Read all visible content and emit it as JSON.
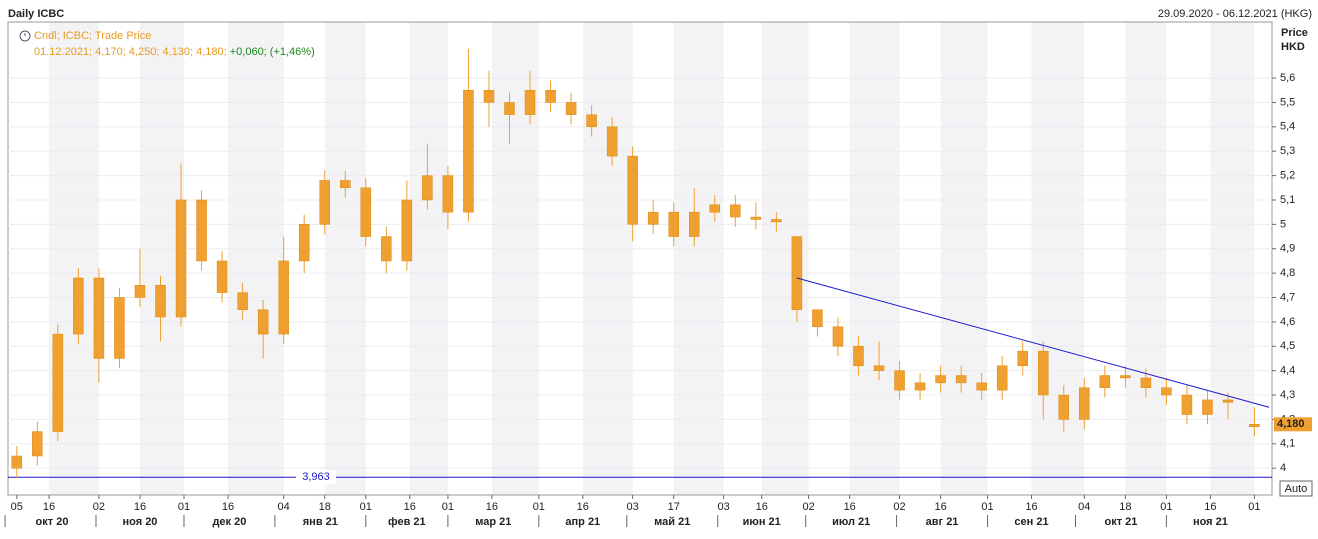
{
  "chart_data": {
    "type": "candlestick",
    "title": "Daily ICBC",
    "date_range": "29.09.2020 - 06.12.2021 (HKG)",
    "legend_lines": [
      "Cndl; ICBC; Trade Price",
      "01.12.2021; 4,170; 4,250; 4,130; 4,180;",
      "+0,060; (+1,46%)"
    ],
    "y_axis_label": [
      "Price",
      "HKD"
    ],
    "color": "#f0a030",
    "x": [
      "2020-10-05",
      "2020-10-12",
      "2020-10-19",
      "2020-10-26",
      "2020-11-02",
      "2020-11-09",
      "2020-11-16",
      "2020-11-23",
      "2020-11-30",
      "2020-12-07",
      "2020-12-14",
      "2020-12-21",
      "2020-12-28",
      "2021-01-04",
      "2021-01-11",
      "2021-01-18",
      "2021-01-25",
      "2021-02-01",
      "2021-02-08",
      "2021-02-15",
      "2021-02-22",
      "2021-03-01",
      "2021-03-08",
      "2021-03-15",
      "2021-03-22",
      "2021-03-29",
      "2021-04-05",
      "2021-04-12",
      "2021-04-19",
      "2021-04-26",
      "2021-05-03",
      "2021-05-10",
      "2021-05-17",
      "2021-05-24",
      "2021-05-31",
      "2021-06-07",
      "2021-06-14",
      "2021-06-21",
      "2021-06-28",
      "2021-07-05",
      "2021-07-12",
      "2021-07-19",
      "2021-07-26",
      "2021-08-02",
      "2021-08-09",
      "2021-08-16",
      "2021-08-23",
      "2021-08-30",
      "2021-09-06",
      "2021-09-13",
      "2021-09-20",
      "2021-09-27",
      "2021-10-04",
      "2021-10-11",
      "2021-10-18",
      "2021-10-25",
      "2021-11-01",
      "2021-11-08",
      "2021-11-15",
      "2021-11-22",
      "2021-12-01"
    ],
    "open": [
      4.0,
      4.05,
      4.15,
      4.55,
      4.78,
      4.45,
      4.7,
      4.75,
      4.62,
      5.1,
      4.85,
      4.72,
      4.65,
      4.55,
      4.85,
      5.0,
      5.18,
      5.15,
      4.95,
      4.85,
      5.1,
      5.2,
      5.05,
      5.55,
      5.5,
      5.45,
      5.55,
      5.5,
      5.45,
      5.4,
      5.28,
      5.0,
      5.05,
      4.95,
      5.05,
      5.08,
      5.03,
      5.02,
      4.95,
      4.65,
      4.58,
      4.5,
      4.42,
      4.4,
      4.32,
      4.35,
      4.38,
      4.35,
      4.32,
      4.42,
      4.48,
      4.3,
      4.2,
      4.33,
      4.38,
      4.37,
      4.33,
      4.3,
      4.22,
      4.28,
      4.17
    ],
    "high": [
      4.09,
      4.19,
      4.59,
      4.82,
      4.82,
      4.74,
      4.9,
      4.79,
      5.25,
      5.14,
      4.89,
      4.76,
      4.69,
      4.95,
      5.04,
      5.22,
      5.22,
      5.19,
      4.99,
      5.18,
      5.33,
      5.24,
      5.72,
      5.63,
      5.54,
      5.63,
      5.59,
      5.54,
      5.49,
      5.44,
      5.32,
      5.1,
      5.09,
      5.15,
      5.12,
      5.12,
      5.09,
      5.05,
      4.95,
      4.65,
      4.62,
      4.54,
      4.52,
      4.44,
      4.39,
      4.42,
      4.42,
      4.39,
      4.46,
      4.52,
      4.52,
      4.34,
      4.37,
      4.42,
      4.42,
      4.41,
      4.37,
      4.34,
      4.32,
      4.31,
      4.25
    ],
    "low": [
      3.96,
      4.01,
      4.11,
      4.51,
      4.35,
      4.41,
      4.66,
      4.52,
      4.58,
      4.81,
      4.68,
      4.61,
      4.45,
      4.51,
      4.8,
      4.96,
      5.11,
      4.91,
      4.8,
      4.81,
      5.06,
      4.98,
      5.01,
      5.4,
      5.33,
      5.41,
      5.46,
      5.41,
      5.36,
      5.24,
      4.93,
      4.96,
      4.91,
      4.91,
      5.01,
      4.99,
      4.98,
      4.97,
      4.6,
      4.54,
      4.46,
      4.38,
      4.36,
      4.28,
      4.28,
      4.31,
      4.31,
      4.28,
      4.28,
      4.38,
      4.2,
      4.15,
      4.16,
      4.29,
      4.33,
      4.29,
      4.26,
      4.18,
      4.18,
      4.2,
      4.13
    ],
    "close": [
      4.05,
      4.15,
      4.55,
      4.78,
      4.45,
      4.7,
      4.75,
      4.62,
      5.1,
      4.85,
      4.72,
      4.65,
      4.55,
      4.85,
      5.0,
      5.18,
      5.15,
      4.95,
      4.85,
      5.1,
      5.2,
      5.05,
      5.55,
      5.5,
      5.45,
      5.55,
      5.5,
      5.45,
      5.4,
      5.28,
      5.0,
      5.05,
      4.95,
      5.05,
      5.08,
      5.03,
      5.02,
      5.01,
      4.65,
      4.58,
      4.5,
      4.42,
      4.4,
      4.32,
      4.35,
      4.38,
      4.35,
      4.32,
      4.42,
      4.48,
      4.3,
      4.2,
      4.33,
      4.38,
      4.37,
      4.33,
      4.3,
      4.22,
      4.28,
      4.27,
      4.18
    ],
    "xlim": [
      "2020-10-02",
      "2021-12-07"
    ],
    "xticks": [
      {
        "value": "2020-10-05",
        "label": "05"
      },
      {
        "value": "2020-10-16",
        "label": "16"
      },
      {
        "value": "2020-11-02",
        "label": "02"
      },
      {
        "value": "2020-11-16",
        "label": "16"
      },
      {
        "value": "2020-12-01",
        "label": "01"
      },
      {
        "value": "2020-12-16",
        "label": "16"
      },
      {
        "value": "2021-01-04",
        "label": "04"
      },
      {
        "value": "2021-01-18",
        "label": "18"
      },
      {
        "value": "2021-02-01",
        "label": "01"
      },
      {
        "value": "2021-02-16",
        "label": "16"
      },
      {
        "value": "2021-03-01",
        "label": "01"
      },
      {
        "value": "2021-03-16",
        "label": "16"
      },
      {
        "value": "2021-04-01",
        "label": "01"
      },
      {
        "value": "2021-04-16",
        "label": "16"
      },
      {
        "value": "2021-05-03",
        "label": "03"
      },
      {
        "value": "2021-05-17",
        "label": "17"
      },
      {
        "value": "2021-06-03",
        "label": "03"
      },
      {
        "value": "2021-06-16",
        "label": "16"
      },
      {
        "value": "2021-07-02",
        "label": "02"
      },
      {
        "value": "2021-07-16",
        "label": "16"
      },
      {
        "value": "2021-08-02",
        "label": "02"
      },
      {
        "value": "2021-08-16",
        "label": "16"
      },
      {
        "value": "2021-09-01",
        "label": "01"
      },
      {
        "value": "2021-09-16",
        "label": "16"
      },
      {
        "value": "2021-10-04",
        "label": "04"
      },
      {
        "value": "2021-10-18",
        "label": "18"
      },
      {
        "value": "2021-11-01",
        "label": "01"
      },
      {
        "value": "2021-11-16",
        "label": "16"
      },
      {
        "value": "2021-12-01",
        "label": "01"
      }
    ],
    "months": [
      {
        "value": "2020-10",
        "label": "окт 20"
      },
      {
        "value": "2020-11",
        "label": "ноя 20"
      },
      {
        "value": "2020-12",
        "label": "дек 20"
      },
      {
        "value": "2021-01",
        "label": "янв 21"
      },
      {
        "value": "2021-02",
        "label": "фев 21"
      },
      {
        "value": "2021-03",
        "label": "мар 21"
      },
      {
        "value": "2021-04",
        "label": "апр 21"
      },
      {
        "value": "2021-05",
        "label": "май 21"
      },
      {
        "value": "2021-06",
        "label": "июн 21"
      },
      {
        "value": "2021-07",
        "label": "июл 21"
      },
      {
        "value": "2021-08",
        "label": "авг 21"
      },
      {
        "value": "2021-09",
        "label": "сен 21"
      },
      {
        "value": "2021-10",
        "label": "окт 21"
      },
      {
        "value": "2021-11",
        "label": "ноя 21"
      }
    ],
    "ylim": [
      3.89,
      5.83
    ],
    "yticks": [
      4,
      {
        "value": 4.1,
        "label": "4,1"
      },
      {
        "value": 4.2,
        "label": "4,2"
      },
      {
        "value": 4.3,
        "label": "4,3"
      },
      {
        "value": 4.4,
        "label": "4,4"
      },
      {
        "value": 4.5,
        "label": "4,5"
      },
      {
        "value": 4.6,
        "label": "4,6"
      },
      {
        "value": 4.7,
        "label": "4,7"
      },
      {
        "value": 4.8,
        "label": "4,8"
      },
      {
        "value": 4.9,
        "label": "4,9"
      },
      5,
      {
        "value": 5.1,
        "label": "5,1"
      },
      {
        "value": 5.2,
        "label": "5,2"
      },
      {
        "value": 5.3,
        "label": "5,3"
      },
      {
        "value": 5.4,
        "label": "5,4"
      },
      {
        "value": 5.5,
        "label": "5,5"
      },
      {
        "value": 5.6,
        "label": "5,6"
      }
    ],
    "hline": {
      "value": 3.963,
      "label": "3,963",
      "color": "#1a1acc"
    },
    "trendline": {
      "x": [
        "2021-06-28",
        "2021-12-06"
      ],
      "y": [
        4.78,
        4.25
      ],
      "color": "#1a1acc"
    },
    "last_price": {
      "value": 4.18,
      "label": "4,180",
      "color": "#f0a030"
    },
    "button": "Auto"
  }
}
